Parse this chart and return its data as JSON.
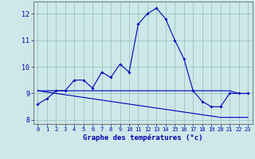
{
  "xlabel": "Graphe des températures (°c)",
  "hours": [
    0,
    1,
    2,
    3,
    4,
    5,
    6,
    7,
    8,
    9,
    10,
    11,
    12,
    13,
    14,
    15,
    16,
    17,
    18,
    19,
    20,
    21,
    22,
    23
  ],
  "temp_main": [
    8.6,
    8.8,
    9.1,
    9.1,
    9.5,
    9.5,
    9.2,
    9.8,
    9.6,
    10.1,
    9.8,
    11.6,
    12.0,
    12.2,
    11.8,
    11.0,
    10.3,
    9.1,
    8.7,
    8.5,
    8.5,
    9.0,
    9.0,
    9.0
  ],
  "temp_line1": [
    9.1,
    9.1,
    9.1,
    9.1,
    9.1,
    9.1,
    9.1,
    9.1,
    9.1,
    9.1,
    9.1,
    9.1,
    9.1,
    9.1,
    9.1,
    9.1,
    9.1,
    9.1,
    9.1,
    9.1,
    9.1,
    9.1,
    9.0,
    9.0
  ],
  "temp_line2": [
    9.1,
    9.05,
    9.0,
    8.95,
    8.9,
    8.85,
    8.8,
    8.75,
    8.7,
    8.65,
    8.6,
    8.55,
    8.5,
    8.45,
    8.4,
    8.35,
    8.3,
    8.25,
    8.2,
    8.15,
    8.1,
    8.1,
    8.1,
    8.1
  ],
  "ylim": [
    7.85,
    12.45
  ],
  "xlim": [
    -0.5,
    23.5
  ],
  "bg_color": "#cce8e8",
  "line_color": "#0000bb",
  "grid_color": "#99bbbb",
  "tick_label_color": "#0000aa",
  "xlabel_color": "#0000aa",
  "yticks": [
    8,
    9,
    10,
    11,
    12
  ],
  "xticks": [
    0,
    1,
    2,
    3,
    4,
    5,
    6,
    7,
    8,
    9,
    10,
    11,
    12,
    13,
    14,
    15,
    16,
    17,
    18,
    19,
    20,
    21,
    22,
    23
  ]
}
